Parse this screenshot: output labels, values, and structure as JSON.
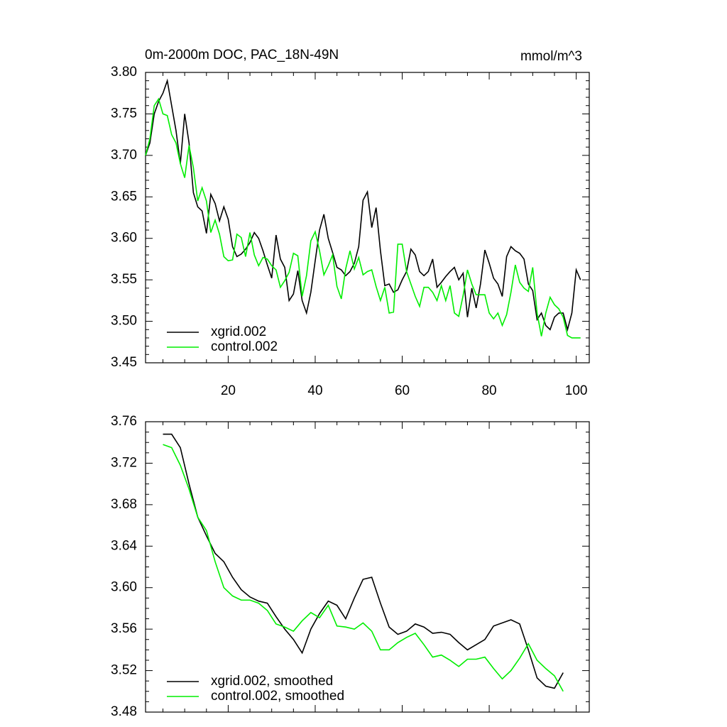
{
  "chart_data": [
    {
      "type": "line",
      "title": "0m-2000m DOC, PAC_18N-49N",
      "units": "mmol/m^3",
      "x": [
        1,
        2,
        3,
        4,
        5,
        6,
        7,
        8,
        9,
        10,
        11,
        12,
        13,
        14,
        15,
        16,
        17,
        18,
        19,
        20,
        21,
        22,
        23,
        24,
        25,
        26,
        27,
        28,
        29,
        30,
        31,
        32,
        33,
        34,
        35,
        36,
        37,
        38,
        39,
        40,
        41,
        42,
        43,
        44,
        45,
        46,
        47,
        48,
        49,
        50,
        51,
        52,
        53,
        54,
        55,
        56,
        57,
        58,
        59,
        60,
        61,
        62,
        63,
        64,
        65,
        66,
        67,
        68,
        69,
        70,
        71,
        72,
        73,
        74,
        75,
        76,
        77,
        78,
        79,
        80,
        81,
        82,
        83,
        84,
        85,
        86,
        87,
        88,
        89,
        90,
        91,
        92,
        93,
        94,
        95,
        96,
        97,
        98,
        99,
        100,
        101
      ],
      "xlim": [
        1,
        103
      ],
      "xticks": [
        20,
        40,
        60,
        80,
        100
      ],
      "ylim": [
        3.45,
        3.8
      ],
      "yticks": [
        3.45,
        {
          "value": 3.5,
          "label": "3.50"
        },
        3.55,
        {
          "value": 3.6,
          "label": "3.60"
        },
        3.65,
        {
          "value": 3.7,
          "label": "3.70"
        },
        3.75,
        {
          "value": 3.8,
          "label": "3.80"
        }
      ],
      "xtick_labels": true,
      "series": [
        {
          "name": "xgrid.002",
          "color": "#000000",
          "values": [
            3.7,
            3.715,
            3.75,
            3.765,
            3.775,
            3.79,
            3.76,
            3.73,
            3.69,
            3.75,
            3.715,
            3.655,
            3.638,
            3.633,
            3.606,
            3.653,
            3.642,
            3.621,
            3.638,
            3.623,
            3.59,
            3.578,
            3.581,
            3.587,
            3.595,
            3.607,
            3.6,
            3.585,
            3.568,
            3.552,
            3.604,
            3.575,
            3.565,
            3.525,
            3.533,
            3.561,
            3.525,
            3.51,
            3.535,
            3.573,
            3.61,
            3.629,
            3.6,
            3.583,
            3.565,
            3.562,
            3.555,
            3.56,
            3.57,
            3.59,
            3.646,
            3.656,
            3.613,
            3.637,
            3.585,
            3.543,
            3.545,
            3.535,
            3.538,
            3.55,
            3.56,
            3.587,
            3.58,
            3.56,
            3.555,
            3.56,
            3.575,
            3.541,
            3.547,
            3.554,
            3.56,
            3.565,
            3.55,
            3.558,
            3.505,
            3.54,
            3.516,
            3.545,
            3.586,
            3.57,
            3.552,
            3.545,
            3.53,
            3.578,
            3.59,
            3.585,
            3.582,
            3.575,
            3.545,
            3.537,
            3.502,
            3.51,
            3.495,
            3.49,
            3.505,
            3.51,
            3.51,
            3.49,
            3.51,
            3.562,
            3.55
          ]
        },
        {
          "name": "control.002",
          "color": "#00ee00",
          "values": [
            3.7,
            3.72,
            3.76,
            3.768,
            3.75,
            3.748,
            3.725,
            3.715,
            3.69,
            3.673,
            3.712,
            3.685,
            3.645,
            3.661,
            3.645,
            3.607,
            3.622,
            3.605,
            3.578,
            3.573,
            3.574,
            3.605,
            3.601,
            3.578,
            3.607,
            3.58,
            3.567,
            3.577,
            3.575,
            3.567,
            3.562,
            3.541,
            3.549,
            3.559,
            3.582,
            3.579,
            3.53,
            3.555,
            3.597,
            3.608,
            3.585,
            3.556,
            3.567,
            3.58,
            3.542,
            3.527,
            3.563,
            3.585,
            3.563,
            3.577,
            3.556,
            3.56,
            3.562,
            3.542,
            3.525,
            3.541,
            3.51,
            3.511,
            3.593,
            3.593,
            3.56,
            3.545,
            3.53,
            3.518,
            3.541,
            3.541,
            3.535,
            3.525,
            3.543,
            3.525,
            3.543,
            3.51,
            3.506,
            3.531,
            3.562,
            3.545,
            3.532,
            3.532,
            3.532,
            3.51,
            3.503,
            3.51,
            3.495,
            3.508,
            3.535,
            3.568,
            3.547,
            3.54,
            3.536,
            3.565,
            3.51,
            3.482,
            3.51,
            3.529,
            3.52,
            3.515,
            3.505,
            3.483,
            3.48,
            3.48,
            3.48
          ]
        }
      ]
    },
    {
      "type": "line",
      "x": [
        5,
        7,
        9,
        11,
        13,
        15,
        17,
        19,
        21,
        23,
        25,
        27,
        29,
        31,
        33,
        35,
        37,
        39,
        41,
        43,
        45,
        47,
        49,
        51,
        53,
        55,
        57,
        59,
        61,
        63,
        65,
        67,
        69,
        71,
        73,
        75,
        77,
        79,
        81,
        83,
        85,
        87,
        89,
        91,
        93,
        95,
        97
      ],
      "xlim": [
        1,
        103
      ],
      "xticks": [
        20,
        40,
        60,
        80,
        100
      ],
      "ylim": [
        3.48,
        3.76
      ],
      "yticks": [
        3.48,
        3.52,
        3.56,
        {
          "value": 3.6,
          "label": "3.60"
        },
        3.64,
        3.68,
        3.72,
        3.76
      ],
      "xtick_labels": false,
      "series": [
        {
          "name": "xgrid.002, smoothed",
          "color": "#000000",
          "values": [
            3.748,
            3.748,
            3.735,
            3.7,
            3.668,
            3.65,
            3.633,
            3.625,
            3.61,
            3.598,
            3.591,
            3.587,
            3.585,
            3.572,
            3.56,
            3.55,
            3.537,
            3.56,
            3.575,
            3.587,
            3.583,
            3.57,
            3.59,
            3.608,
            3.61,
            3.585,
            3.562,
            3.555,
            3.558,
            3.565,
            3.562,
            3.556,
            3.557,
            3.555,
            3.547,
            3.54,
            3.545,
            3.55,
            3.563,
            3.566,
            3.569,
            3.565,
            3.54,
            3.513,
            3.505,
            3.503,
            3.518
          ]
        },
        {
          "name": "control.002, smoothed",
          "color": "#00ee00",
          "values": [
            3.738,
            3.735,
            3.718,
            3.695,
            3.668,
            3.655,
            3.625,
            3.6,
            3.592,
            3.588,
            3.588,
            3.585,
            3.578,
            3.565,
            3.562,
            3.558,
            3.568,
            3.576,
            3.571,
            3.583,
            3.563,
            3.562,
            3.56,
            3.566,
            3.558,
            3.54,
            3.54,
            3.547,
            3.552,
            3.556,
            3.545,
            3.533,
            3.535,
            3.53,
            3.524,
            3.531,
            3.531,
            3.533,
            3.522,
            3.512,
            3.52,
            3.532,
            3.546,
            3.53,
            3.522,
            3.515,
            3.5
          ]
        }
      ]
    }
  ]
}
